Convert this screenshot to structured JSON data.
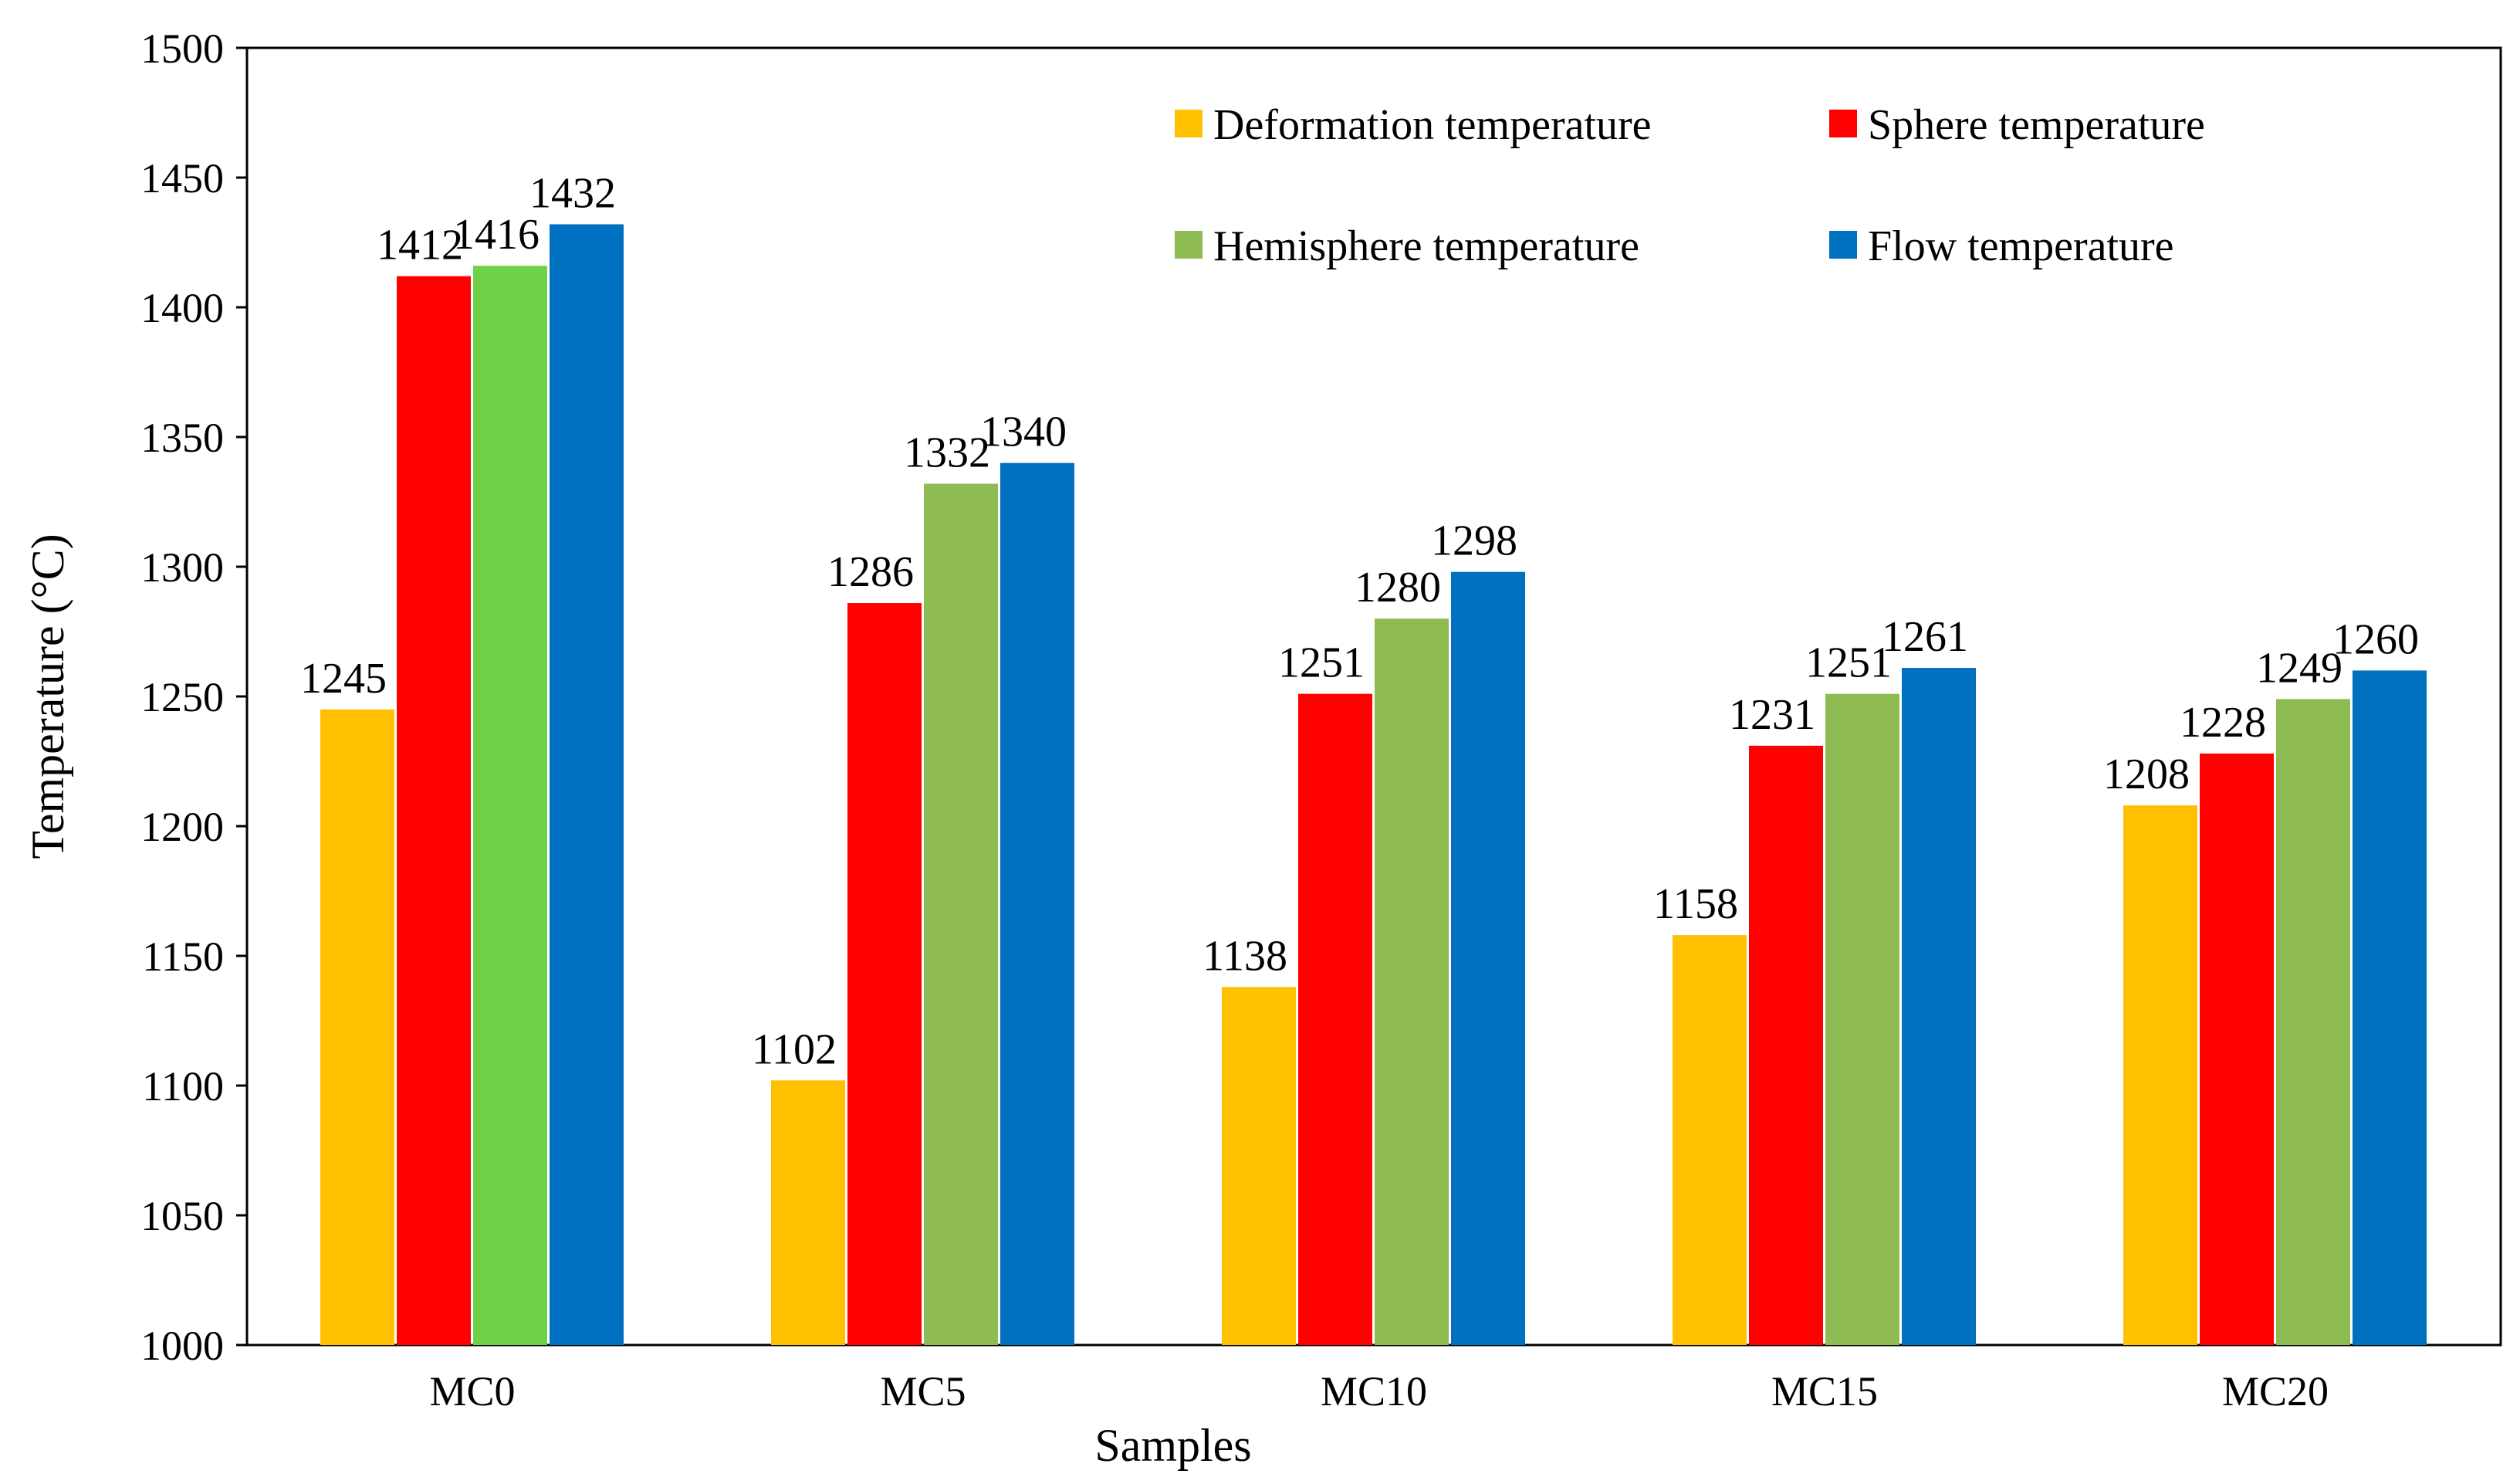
{
  "chart_data": {
    "type": "bar",
    "title": "",
    "xlabel": "Samples",
    "ylabel": "Temperature (°C)",
    "ylim": [
      1000,
      1500
    ],
    "ytick_step": 50,
    "legend_position": "top-right",
    "grid": false,
    "categories": [
      "MC0",
      "MC5",
      "MC10",
      "MC15",
      "MC20"
    ],
    "series": [
      {
        "name": "Deformation temperature",
        "color": "#FFC000",
        "values": [
          1245,
          1102,
          1138,
          1158,
          1208
        ]
      },
      {
        "name": "Sphere temperature",
        "color": "#FF0000",
        "values": [
          1412,
          1286,
          1251,
          1231,
          1228
        ]
      },
      {
        "name": "Hemisphere temperature",
        "color": "#8FBC52",
        "values": [
          1416,
          1332,
          1280,
          1251,
          1249
        ]
      },
      {
        "name": "Flow temperature",
        "color": "#0070C0",
        "values": [
          1432,
          1340,
          1298,
          1261,
          1260
        ]
      }
    ],
    "special_colors": {
      "MC0-Hemisphere temperature": "#6FD148"
    }
  }
}
